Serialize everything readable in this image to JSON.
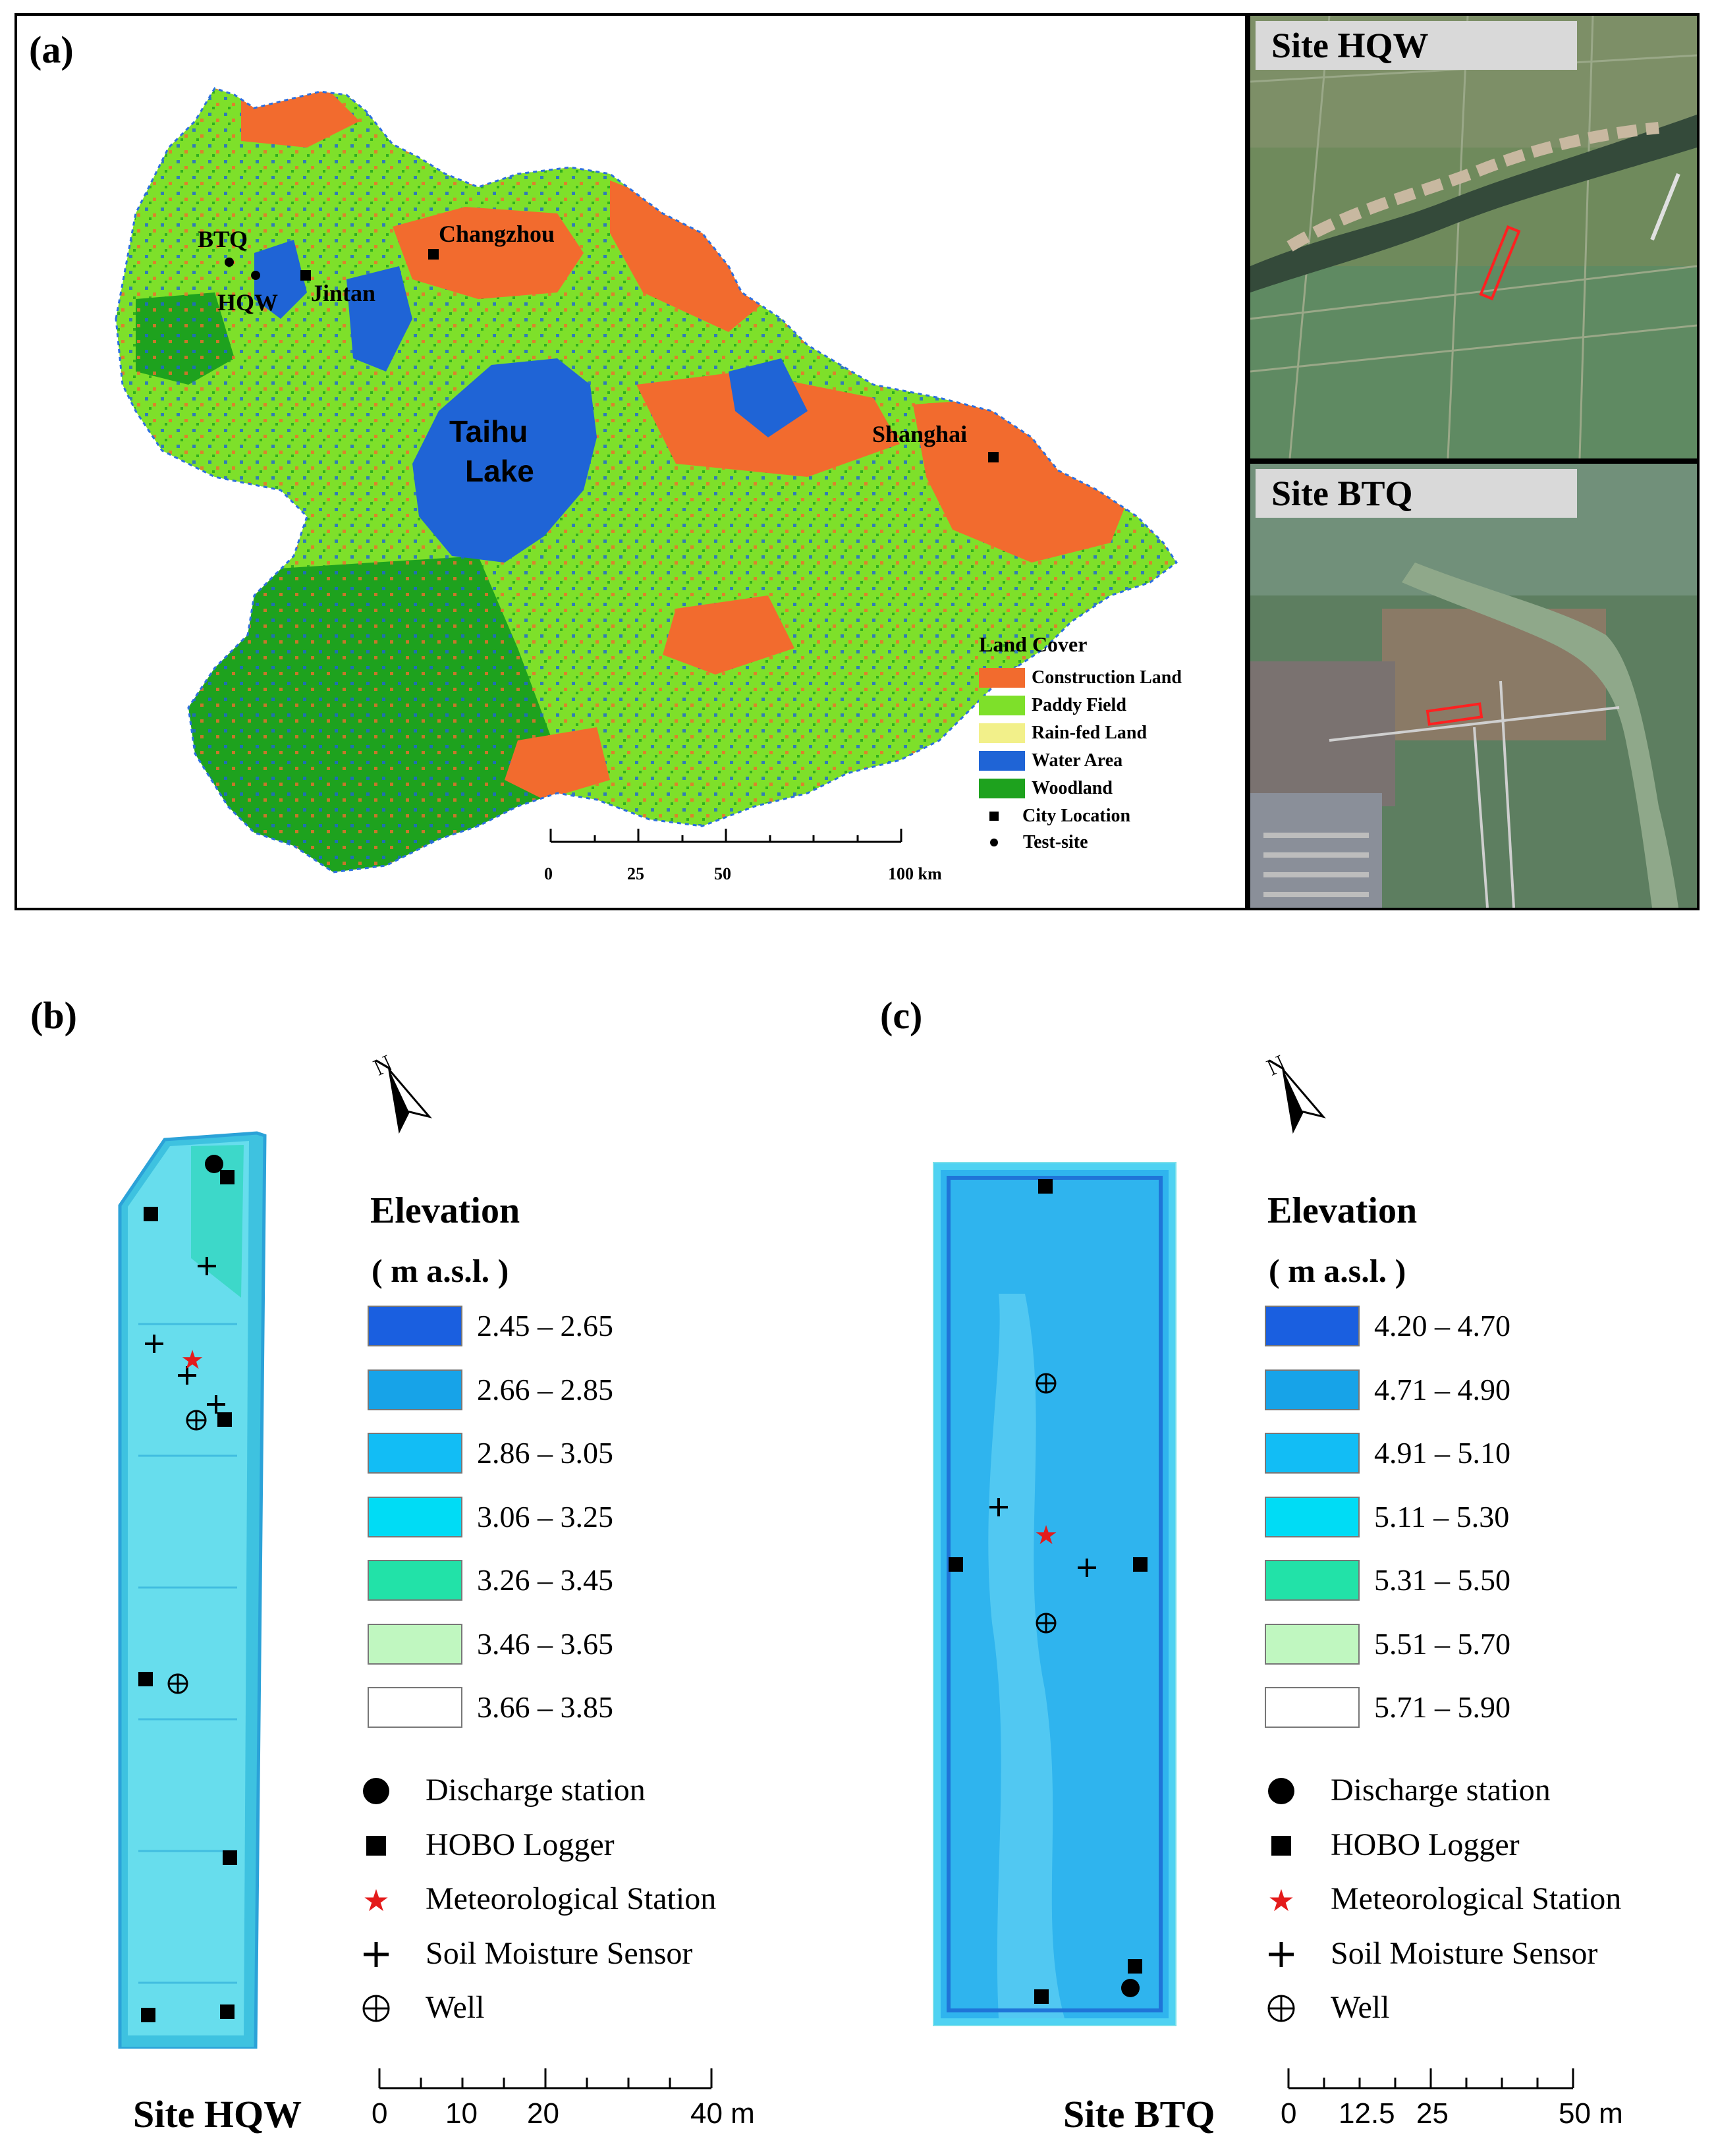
{
  "panel_a": {
    "label": "(a)",
    "cities": {
      "changzhou": "Changzhou",
      "jintan": "Jintan",
      "shanghai": "Shanghai"
    },
    "test_sites": {
      "btq": "BTQ",
      "hqw": "HQW"
    },
    "lake_line1": "Taihu",
    "lake_line2": "Lake",
    "legend_title": "Land Cover",
    "legend_items": [
      {
        "label": "Construction Land",
        "color": "#f26b2e"
      },
      {
        "label": "Paddy Field",
        "color": "#7ee02a"
      },
      {
        "label": "Rain-fed Land",
        "color": "#f2f08a"
      },
      {
        "label": "Water Area",
        "color": "#1f64d6"
      },
      {
        "label": "Woodland",
        "color": "#1ea21e"
      }
    ],
    "legend_city": "City Location",
    "legend_testsite": "Test-site",
    "scale_ticks": [
      "0",
      "25",
      "50",
      "100 km"
    ],
    "site_hqw_title": "Site HQW",
    "site_btq_title": "Site BTQ"
  },
  "panel_b": {
    "label": "(b)",
    "north": "N",
    "elevation_title": "Elevation",
    "elevation_units": "( m a.s.l. )",
    "classes": [
      {
        "range": "2.45 – 2.65",
        "color": "#1a5fe0"
      },
      {
        "range": "2.66 – 2.85",
        "color": "#17a3e8"
      },
      {
        "range": "2.86 – 3.05",
        "color": "#12bdf5"
      },
      {
        "range": "3.06 – 3.25",
        "color": "#00dcf5"
      },
      {
        "range": "3.26 – 3.45",
        "color": "#22e2a8"
      },
      {
        "range": "3.46 – 3.65",
        "color": "#c0f7c0"
      },
      {
        "range": "3.66 – 3.85",
        "color": "#ffffff"
      }
    ],
    "symbols": [
      "Discharge station",
      "HOBO Logger",
      "Meteorological Station",
      "Soil Moisture Sensor",
      "Well"
    ],
    "scale_ticks": [
      "0",
      "10",
      "20",
      "40 m"
    ],
    "site_name": "Site HQW"
  },
  "panel_c": {
    "label": "(c)",
    "north": "N",
    "elevation_title": "Elevation",
    "elevation_units": "( m a.s.l. )",
    "classes": [
      {
        "range": "4.20 – 4.70",
        "color": "#1a5fe0"
      },
      {
        "range": "4.71 – 4.90",
        "color": "#17a3e8"
      },
      {
        "range": "4.91 – 5.10",
        "color": "#12bdf5"
      },
      {
        "range": "5.11 – 5.30",
        "color": "#00dcf5"
      },
      {
        "range": "5.31 – 5.50",
        "color": "#22e2a8"
      },
      {
        "range": "5.51 – 5.70",
        "color": "#c0f7c0"
      },
      {
        "range": "5.71 – 5.90",
        "color": "#ffffff"
      }
    ],
    "symbols": [
      "Discharge station",
      "HOBO Logger",
      "Meteorological Station",
      "Soil Moisture Sensor",
      "Well"
    ],
    "scale_ticks": [
      "0",
      "12.5",
      "25",
      "50 m"
    ],
    "site_name": "Site BTQ"
  }
}
